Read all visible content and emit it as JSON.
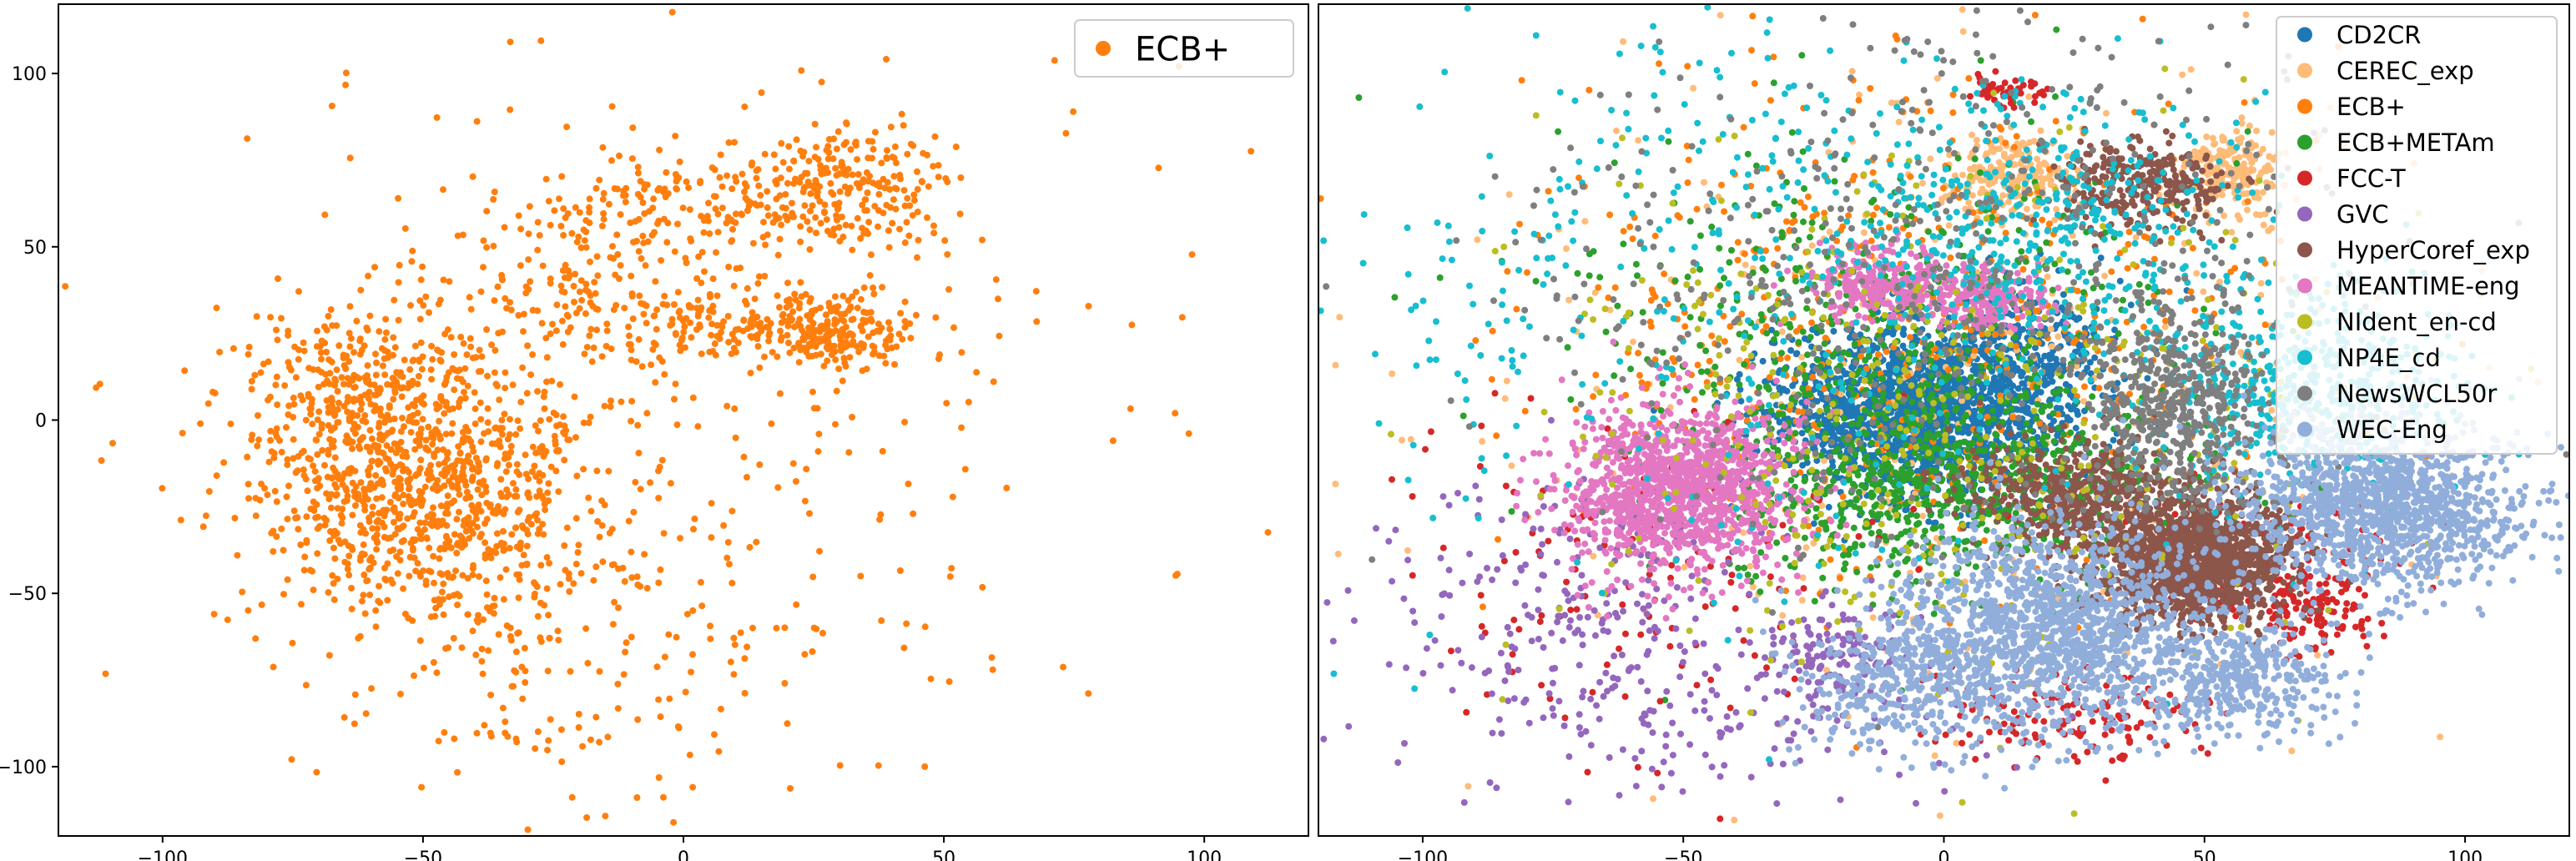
{
  "chart_data": [
    {
      "type": "scatter",
      "title": "",
      "xlabel": "",
      "ylabel": "",
      "xlim": [
        -120,
        120
      ],
      "ylim": [
        -120,
        120
      ],
      "xticks": [
        -100,
        -50,
        0,
        50,
        100
      ],
      "yticks": [
        -100,
        -50,
        0,
        50,
        100
      ],
      "xtick_labels": [
        "−100",
        "−50",
        "0",
        "50",
        "100"
      ],
      "ytick_labels": [
        "−100",
        "−50",
        "0",
        "50",
        "100"
      ],
      "grid": false,
      "legend_position": "top-right",
      "series": [
        {
          "name": "ECB+",
          "color": "#ff7f0e",
          "clusters": [
            {
              "cx": -50,
              "cy": -20,
              "sx": 16,
              "sy": 18,
              "n": 900
            },
            {
              "cx": -60,
              "cy": 10,
              "sx": 14,
              "sy": 12,
              "n": 250
            },
            {
              "cx": 10,
              "cy": 28,
              "sx": 20,
              "sy": 6,
              "n": 220
            },
            {
              "cx": 28,
              "cy": 25,
              "sx": 7,
              "sy": 5,
              "n": 160
            },
            {
              "cx": 8,
              "cy": 62,
              "sx": 16,
              "sy": 8,
              "n": 200
            },
            {
              "cx": 33,
              "cy": 68,
              "sx": 9,
              "sy": 8,
              "n": 170
            },
            {
              "cx": -25,
              "cy": 40,
              "sx": 15,
              "sy": 15,
              "n": 140
            },
            {
              "cx": -20,
              "cy": -60,
              "sx": 25,
              "sy": 25,
              "n": 200
            },
            {
              "cx": -5,
              "cy": 0,
              "sx": 50,
              "sy": 55,
              "n": 260
            }
          ]
        }
      ]
    },
    {
      "type": "scatter",
      "title": "",
      "xlabel": "",
      "ylabel": "",
      "xlim": [
        -120,
        120
      ],
      "ylim": [
        -120,
        120
      ],
      "xticks": [
        -100,
        -50,
        0,
        50,
        100
      ],
      "xtick_labels": [
        "−100",
        "−50",
        "0",
        "50",
        "100"
      ],
      "grid": false,
      "legend_position": "top-right",
      "series": [
        {
          "name": "CD2CR",
          "color": "#1f77b4",
          "clusters": [
            {
              "cx": -5,
              "cy": 2,
              "sx": 14,
              "sy": 12,
              "n": 1700
            },
            {
              "cx": 15,
              "cy": 20,
              "sx": 10,
              "sy": 10,
              "n": 250
            }
          ]
        },
        {
          "name": "CEREC_exp",
          "color": "#ffbb78",
          "clusters": [
            {
              "cx": 55,
              "cy": 72,
              "sx": 5,
              "sy": 6,
              "n": 200
            },
            {
              "cx": 12,
              "cy": 70,
              "sx": 6,
              "sy": 6,
              "n": 200
            },
            {
              "cx": 0,
              "cy": 10,
              "sx": 50,
              "sy": 50,
              "n": 350
            }
          ]
        },
        {
          "name": "ECB+",
          "color": "#ff7f0e",
          "clusters": [
            {
              "cx": -8,
              "cy": 25,
              "sx": 35,
              "sy": 35,
              "n": 600
            }
          ]
        },
        {
          "name": "ECB+METAm",
          "color": "#2ca02c",
          "clusters": [
            {
              "cx": 0,
              "cy": -18,
              "sx": 22,
              "sy": 14,
              "n": 800
            },
            {
              "cx": -10,
              "cy": 25,
              "sx": 30,
              "sy": 30,
              "n": 500
            }
          ]
        },
        {
          "name": "FCC-T",
          "color": "#d62728",
          "clusters": [
            {
              "cx": 12,
              "cy": 95,
              "sx": 3,
              "sy": 2,
              "n": 60
            },
            {
              "cx": 70,
              "cy": -55,
              "sx": 6,
              "sy": 6,
              "n": 120
            },
            {
              "cx": 25,
              "cy": -85,
              "sx": 15,
              "sy": 8,
              "n": 150
            },
            {
              "cx": -60,
              "cy": -45,
              "sx": 25,
              "sy": 25,
              "n": 130
            },
            {
              "cx": 60,
              "cy": -40,
              "sx": 15,
              "sy": 10,
              "n": 120
            }
          ]
        },
        {
          "name": "GVC",
          "color": "#9467bd",
          "clusters": [
            {
              "cx": -70,
              "cy": -50,
              "sx": 20,
              "sy": 20,
              "n": 220
            },
            {
              "cx": -20,
              "cy": -65,
              "sx": 8,
              "sy": 6,
              "n": 120
            },
            {
              "cx": -45,
              "cy": -85,
              "sx": 30,
              "sy": 12,
              "n": 150
            }
          ]
        },
        {
          "name": "HyperCoref_exp",
          "color": "#8c564b",
          "clusters": [
            {
              "cx": 48,
              "cy": -40,
              "sx": 9,
              "sy": 9,
              "n": 1600
            },
            {
              "cx": 25,
              "cy": -22,
              "sx": 10,
              "sy": 8,
              "n": 500
            },
            {
              "cx": 38,
              "cy": 68,
              "sx": 8,
              "sy": 6,
              "n": 300
            }
          ]
        },
        {
          "name": "MEANTIME-eng",
          "color": "#e377c2",
          "clusters": [
            {
              "cx": -50,
              "cy": -20,
              "sx": 11,
              "sy": 12,
              "n": 1300
            },
            {
              "cx": -12,
              "cy": 40,
              "sx": 6,
              "sy": 5,
              "n": 250
            },
            {
              "cx": 8,
              "cy": 35,
              "sx": 6,
              "sy": 4,
              "n": 200
            }
          ]
        },
        {
          "name": "NIdent_en-cd",
          "color": "#bcbd22",
          "clusters": [
            {
              "cx": 0,
              "cy": 0,
              "sx": 40,
              "sy": 40,
              "n": 450
            }
          ]
        },
        {
          "name": "NP4E_cd",
          "color": "#17becf",
          "clusters": [
            {
              "cx": 70,
              "cy": 10,
              "sx": 15,
              "sy": 15,
              "n": 500
            },
            {
              "cx": 20,
              "cy": 55,
              "sx": 20,
              "sy": 18,
              "n": 350
            },
            {
              "cx": -30,
              "cy": 40,
              "sx": 45,
              "sy": 45,
              "n": 450
            }
          ]
        },
        {
          "name": "NewsWCL50r",
          "color": "#7f7f7f",
          "clusters": [
            {
              "cx": 45,
              "cy": 5,
              "sx": 8,
              "sy": 15,
              "n": 500
            },
            {
              "cx": 0,
              "cy": 40,
              "sx": 40,
              "sy": 40,
              "n": 600
            }
          ]
        },
        {
          "name": "WEC-Eng",
          "color": "#91aedb",
          "clusters": [
            {
              "cx": 85,
              "cy": -25,
              "sx": 14,
              "sy": 12,
              "n": 1300
            },
            {
              "cx": 20,
              "cy": -60,
              "sx": 15,
              "sy": 15,
              "n": 1400
            },
            {
              "cx": 55,
              "cy": -75,
              "sx": 10,
              "sy": 8,
              "n": 400
            },
            {
              "cx": -10,
              "cy": -75,
              "sx": 10,
              "sy": 10,
              "n": 300
            }
          ]
        }
      ]
    }
  ]
}
